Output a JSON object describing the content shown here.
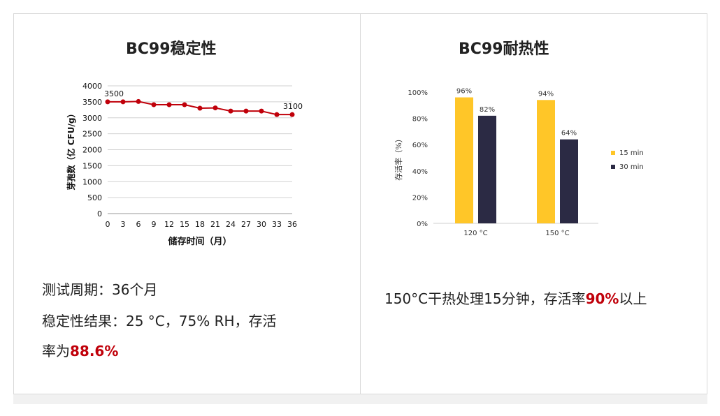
{
  "left": {
    "chart_data": {
      "type": "line",
      "title": "BC99稳定性",
      "xlabel": "储存时间（月）",
      "ylabel": "芽孢数（亿 CFU/g）",
      "x": [
        0,
        3,
        6,
        9,
        12,
        15,
        18,
        21,
        24,
        27,
        30,
        33,
        36
      ],
      "values": [
        3500,
        3500,
        3510,
        3410,
        3410,
        3410,
        3300,
        3310,
        3210,
        3210,
        3210,
        3100,
        3100
      ],
      "yticks": [
        0,
        500,
        1000,
        1500,
        2000,
        2500,
        3000,
        3500,
        4000
      ],
      "ylim": [
        0,
        4000
      ],
      "grid": true,
      "color": "#c0000a",
      "annotations": [
        {
          "x": 0,
          "text": "3500"
        },
        {
          "x": 36,
          "text": "3100"
        }
      ]
    },
    "line1": "测试周期：36个月",
    "line2": "稳定性结果：25 °C，75% RH，存活",
    "line3_prefix": "率为",
    "line3_highlight": "88.6%"
  },
  "right": {
    "chart_data": {
      "type": "bar",
      "title": "BC99耐热性",
      "ylabel": "存活率（%）",
      "categories": [
        "120 °C",
        "150 °C"
      ],
      "series": [
        {
          "name": "15 min",
          "values": [
            96,
            94
          ],
          "labels": [
            "96%",
            "94%"
          ],
          "color": "#ffc628"
        },
        {
          "name": "30 min",
          "values": [
            82,
            64
          ],
          "labels": [
            "82%",
            "64%"
          ],
          "color": "#2b2a44"
        }
      ],
      "yticks": [
        "0%",
        "20%",
        "40%",
        "60%",
        "80%",
        "100%"
      ],
      "ylim": [
        0,
        100
      ],
      "grid": false,
      "legend": "right"
    },
    "text_prefix": "150°C干热处理15分钟，存活率",
    "text_highlight": "90%",
    "text_suffix": "以上"
  }
}
